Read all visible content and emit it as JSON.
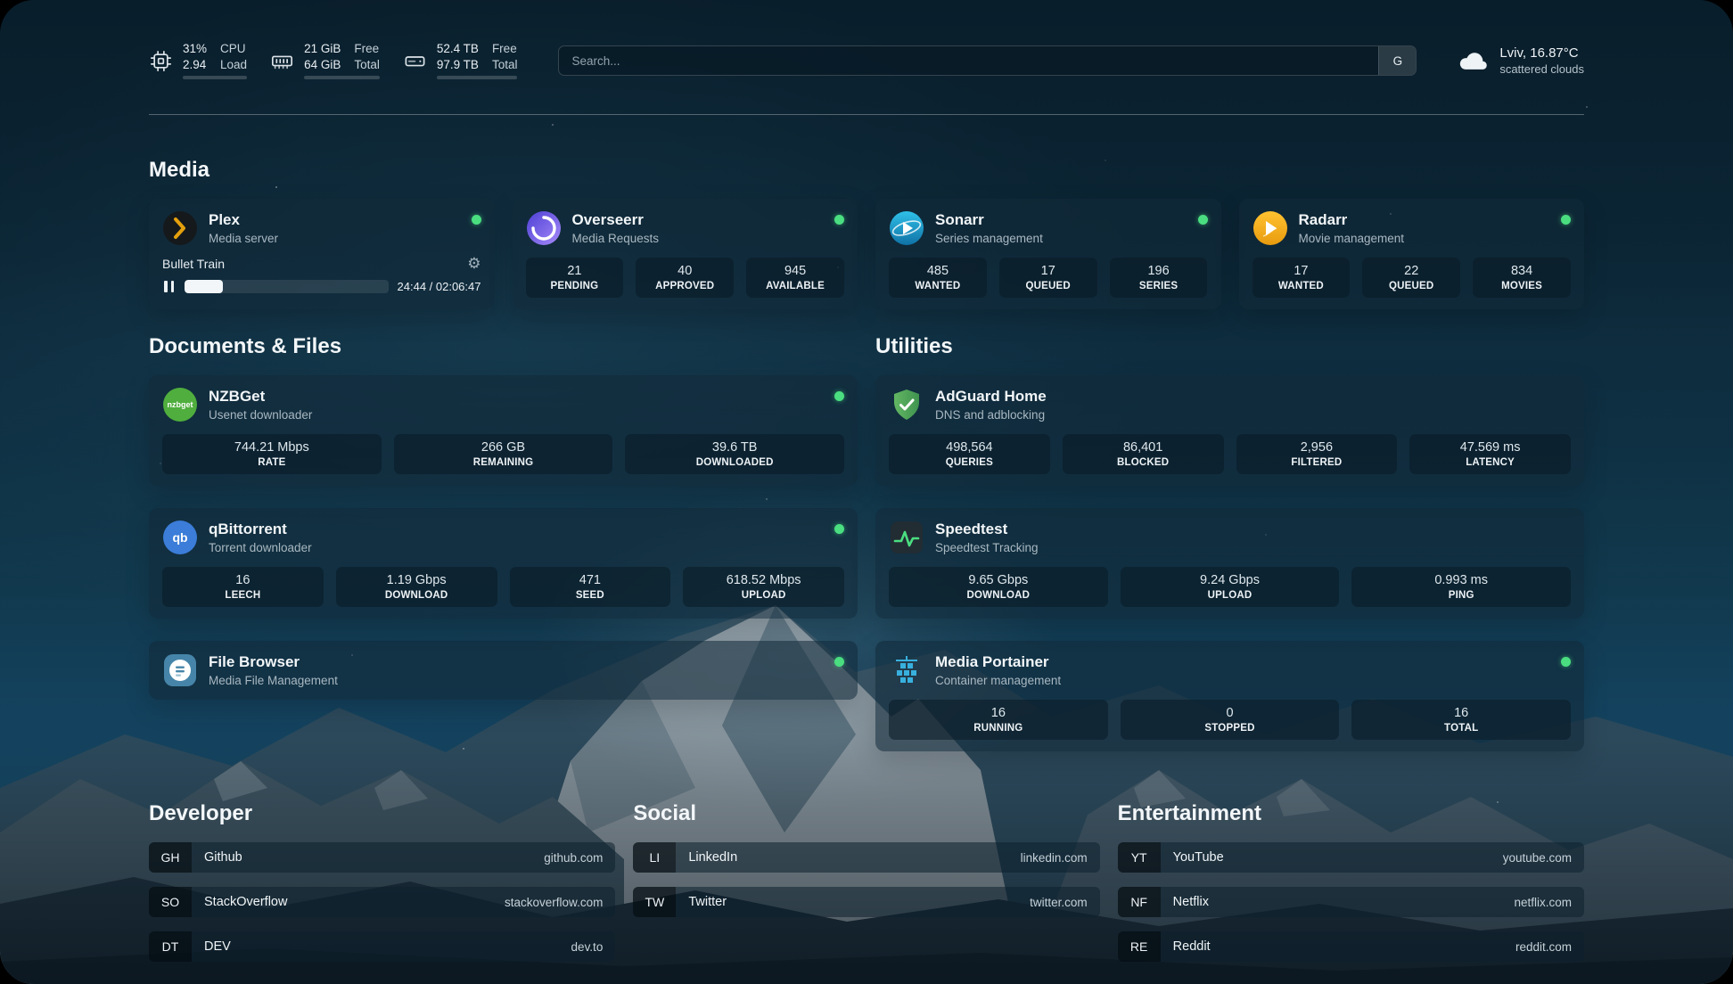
{
  "header": {
    "stats": [
      {
        "icon": "cpu-icon",
        "line1": "31%",
        "line2": "2.94",
        "label1": "CPU",
        "label2": "Load",
        "progress_percent": 31
      },
      {
        "icon": "memory-icon",
        "line1": "21 GiB",
        "line2": "64 GiB",
        "label1": "Free",
        "label2": "Total",
        "progress_percent": 67
      },
      {
        "icon": "disk-icon",
        "line1": "52.4 TB",
        "line2": "97.9 TB",
        "label1": "Free",
        "label2": "Total",
        "progress_percent": 46
      }
    ],
    "search": {
      "placeholder": "Search...",
      "provider_label": "G"
    },
    "weather": {
      "location": "Lviv, 16.87°C",
      "condition": "scattered clouds"
    }
  },
  "sections": {
    "media": "Media",
    "documents": "Documents & Files",
    "utilities": "Utilities"
  },
  "icons": {
    "gear": "⚙",
    "nzbget_logo": "nzbget",
    "qbittorrent_logo": "qb"
  },
  "media": {
    "plex": {
      "name": "Plex",
      "subtitle": "Media server",
      "now_playing": "Bullet Train",
      "time": "24:44 / 02:06:47",
      "progress_percent": 19
    },
    "overseerr": {
      "name": "Overseerr",
      "subtitle": "Media Requests",
      "stats": [
        {
          "value": "21",
          "label": "PENDING"
        },
        {
          "value": "40",
          "label": "APPROVED"
        },
        {
          "value": "945",
          "label": "AVAILABLE"
        }
      ]
    },
    "sonarr": {
      "name": "Sonarr",
      "subtitle": "Series management",
      "stats": [
        {
          "value": "485",
          "label": "WANTED"
        },
        {
          "value": "17",
          "label": "QUEUED"
        },
        {
          "value": "196",
          "label": "SERIES"
        }
      ]
    },
    "radarr": {
      "name": "Radarr",
      "subtitle": "Movie management",
      "stats": [
        {
          "value": "17",
          "label": "WANTED"
        },
        {
          "value": "22",
          "label": "QUEUED"
        },
        {
          "value": "834",
          "label": "MOVIES"
        }
      ]
    }
  },
  "documents": {
    "nzbget": {
      "name": "NZBGet",
      "subtitle": "Usenet downloader",
      "stats": [
        {
          "value": "744.21 Mbps",
          "label": "RATE"
        },
        {
          "value": "266 GB",
          "label": "REMAINING"
        },
        {
          "value": "39.6 TB",
          "label": "DOWNLOADED"
        }
      ]
    },
    "qbittorrent": {
      "name": "qBittorrent",
      "subtitle": "Torrent downloader",
      "stats": [
        {
          "value": "16",
          "label": "LEECH"
        },
        {
          "value": "1.19 Gbps",
          "label": "DOWNLOAD"
        },
        {
          "value": "471",
          "label": "SEED"
        },
        {
          "value": "618.52 Mbps",
          "label": "UPLOAD"
        }
      ]
    },
    "filebrowser": {
      "name": "File Browser",
      "subtitle": "Media File Management"
    }
  },
  "utilities": {
    "adguard": {
      "name": "AdGuard Home",
      "subtitle": "DNS and adblocking",
      "stats": [
        {
          "value": "498,564",
          "label": "QUERIES"
        },
        {
          "value": "86,401",
          "label": "BLOCKED"
        },
        {
          "value": "2,956",
          "label": "FILTERED"
        },
        {
          "value": "47.569 ms",
          "label": "LATENCY"
        }
      ]
    },
    "speedtest": {
      "name": "Speedtest",
      "subtitle": "Speedtest Tracking",
      "stats": [
        {
          "value": "9.65 Gbps",
          "label": "DOWNLOAD"
        },
        {
          "value": "9.24 Gbps",
          "label": "UPLOAD"
        },
        {
          "value": "0.993 ms",
          "label": "PING"
        }
      ]
    },
    "portainer": {
      "name": "Media Portainer",
      "subtitle": "Container management",
      "stats": [
        {
          "value": "16",
          "label": "RUNNING"
        },
        {
          "value": "0",
          "label": "STOPPED"
        },
        {
          "value": "16",
          "label": "TOTAL"
        }
      ]
    }
  },
  "bookmarks": {
    "developer": {
      "title": "Developer",
      "items": [
        {
          "abbr": "GH",
          "label": "Github",
          "url": "github.com"
        },
        {
          "abbr": "SO",
          "label": "StackOverflow",
          "url": "stackoverflow.com"
        },
        {
          "abbr": "DT",
          "label": "DEV",
          "url": "dev.to"
        }
      ]
    },
    "social": {
      "title": "Social",
      "items": [
        {
          "abbr": "LI",
          "label": "LinkedIn",
          "url": "linkedin.com"
        },
        {
          "abbr": "TW",
          "label": "Twitter",
          "url": "twitter.com"
        }
      ]
    },
    "entertainment": {
      "title": "Entertainment",
      "items": [
        {
          "abbr": "YT",
          "label": "YouTube",
          "url": "youtube.com"
        },
        {
          "abbr": "NF",
          "label": "Netflix",
          "url": "netflix.com"
        },
        {
          "abbr": "RE",
          "label": "Reddit",
          "url": "reddit.com"
        }
      ]
    }
  },
  "colors": {
    "status_online": "#4ade80",
    "plex_accent": "#e5a00d",
    "speedtest_line": "#4ade80"
  }
}
